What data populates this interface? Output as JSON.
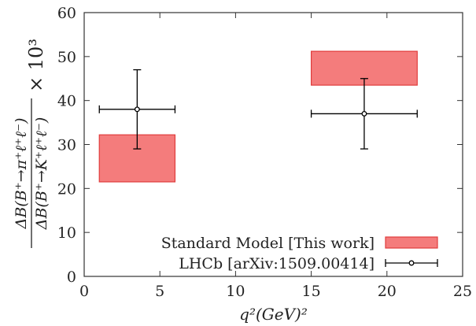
{
  "chart_data": {
    "type": "bar",
    "title": "",
    "xlabel": "q²(GeV)²",
    "ylabel": {
      "numerator": "ΔB(B⁺→π⁺ℓ⁺ℓ⁻)",
      "denominator": "ΔB(B⁺→K⁺ℓ⁺ℓ⁻)",
      "scale": "× 10³"
    },
    "xlim": [
      0,
      25
    ],
    "ylim": [
      0,
      60
    ],
    "xticks": [
      "0",
      "5",
      "10",
      "15",
      "20",
      "25"
    ],
    "yticks": [
      "0",
      "10",
      "20",
      "30",
      "40",
      "50",
      "60"
    ],
    "grid": false,
    "legend_position": "bottom-right",
    "series": [
      {
        "name": "Standard Model [This work]",
        "kind": "band",
        "color": "#f47c7c",
        "edge_color": "#e03c3c",
        "bins": [
          {
            "x_low": 1,
            "x_high": 6,
            "y_low": 21.5,
            "y_high": 32.2
          },
          {
            "x_low": 15,
            "x_high": 22,
            "y_low": 43.5,
            "y_high": 51.2
          }
        ]
      },
      {
        "name": "LHCb [arXiv:1509.00414]",
        "kind": "errorbar",
        "color": "#000000",
        "points": [
          {
            "x": 3.5,
            "x_low": 1,
            "x_high": 6,
            "y": 38,
            "y_low": 29,
            "y_high": 47
          },
          {
            "x": 18.5,
            "x_low": 15,
            "x_high": 22,
            "y": 37,
            "y_low": 29,
            "y_high": 45
          }
        ]
      }
    ]
  }
}
